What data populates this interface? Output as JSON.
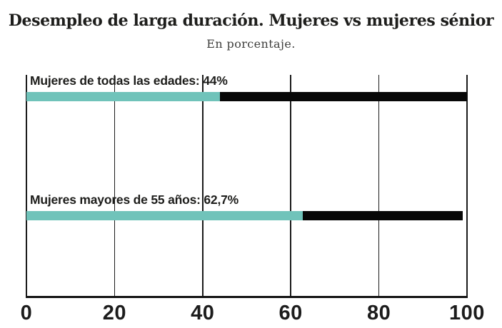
{
  "header": {
    "title": "Desempleo de larga duración. Mujeres vs mujeres sénior",
    "subtitle": "En porcentaje."
  },
  "chart_data": {
    "type": "bar",
    "orientation": "horizontal",
    "title": "Desempleo de larga duración. Mujeres vs mujeres sénior",
    "subtitle": "En porcentaje.",
    "unit": "percent",
    "xlim": [
      0,
      100
    ],
    "x_ticks": [
      "0",
      "20",
      "40",
      "60",
      "80",
      "100"
    ],
    "grid": true,
    "legend": "none",
    "bars": [
      {
        "category": "Mujeres de todas las edades",
        "label": "Mujeres de todas las edades: 44%",
        "value": 44,
        "value_display": "44%",
        "remainder_end": 100
      },
      {
        "category": "Mujeres mayores de 55 años",
        "label": "Mujeres mayores de 55 años: 62,7%",
        "value": 62.7,
        "value_display": "62,7%",
        "remainder_end": 99
      }
    ],
    "colors": {
      "value_segment": "#70c3ba",
      "remainder_segment": "#070707",
      "gridline": "#1b1b1b",
      "axis_line": "#121212",
      "label_text": "#1d1d1b",
      "tick_text": "#1c1c1c",
      "title_text": "#1e1e1c",
      "subtitle_text": "#3e3e3c",
      "background": "#ffffff"
    }
  }
}
